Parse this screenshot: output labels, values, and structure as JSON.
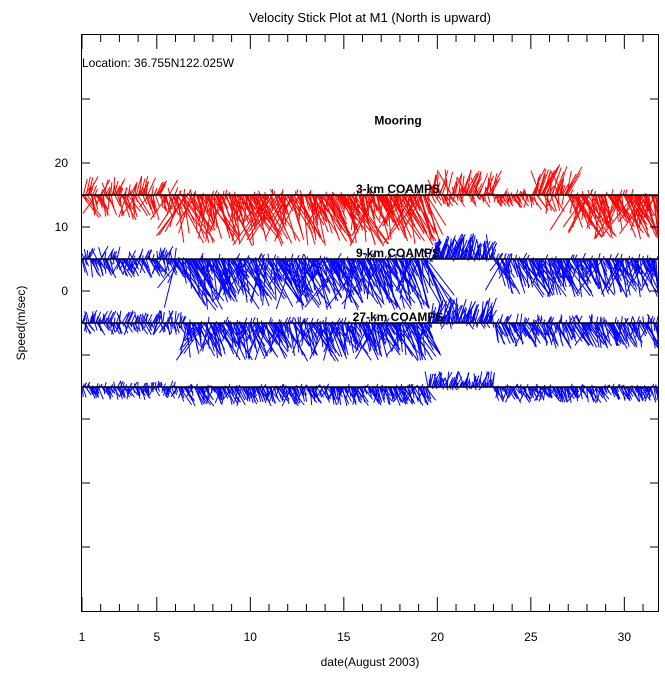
{
  "chart_data": {
    "type": "stick",
    "title": "Velocity Stick Plot at M1 (North is upward)",
    "xlabel": "date(August 2003)",
    "ylabel": "Speed(m/sec)",
    "annotation": "Location: 36.755N122.025W",
    "x_ticks": [
      1,
      5,
      10,
      15,
      20,
      25,
      30
    ],
    "x_minor_ticks": [
      2,
      3,
      4,
      6,
      7,
      8,
      9,
      11,
      12,
      13,
      14,
      16,
      17,
      18,
      19,
      21,
      22,
      23,
      24,
      26,
      27,
      28,
      29,
      31
    ],
    "xlim": [
      1,
      31.8
    ],
    "y_ticks": [
      20,
      10,
      0
    ],
    "y_tick_positions": [
      20,
      10,
      0
    ],
    "ylim": [
      -50,
      40
    ],
    "series": [
      {
        "name": "Mooring",
        "baseline": 15,
        "color": "#ff0000",
        "segments": [
          {
            "from": 1,
            "to": 6,
            "max_down": 4,
            "max_up": 3
          },
          {
            "from": 6,
            "to": 19.5,
            "max_down": 8,
            "max_up": 1
          },
          {
            "from": 19.5,
            "to": 23,
            "max_down": 2,
            "max_up": 4
          },
          {
            "from": 23,
            "to": 25,
            "max_down": 2,
            "max_up": 1
          },
          {
            "from": 25,
            "to": 27,
            "max_down": 3,
            "max_up": 5
          },
          {
            "from": 27,
            "to": 31.8,
            "max_down": 7,
            "max_up": 1
          }
        ]
      },
      {
        "name": "3-km COAMPS",
        "baseline": 5,
        "color": "#0000ff",
        "segments": [
          {
            "from": 1,
            "to": 6,
            "max_down": 3,
            "max_up": 2
          },
          {
            "from": 6,
            "to": 19.5,
            "max_down": 8,
            "max_up": 1
          },
          {
            "from": 19.5,
            "to": 23,
            "max_down": 0.5,
            "max_up": 4
          },
          {
            "from": 23,
            "to": 31.8,
            "max_down": 6,
            "max_up": 1
          }
        ]
      },
      {
        "name": "9-km COAMPS",
        "baseline": -5,
        "color": "#0000ff",
        "segments": [
          {
            "from": 1,
            "to": 6.5,
            "max_down": 2,
            "max_up": 2
          },
          {
            "from": 6.5,
            "to": 19.5,
            "max_down": 6,
            "max_up": 1
          },
          {
            "from": 19.5,
            "to": 23,
            "max_down": 1,
            "max_up": 4
          },
          {
            "from": 23,
            "to": 31.8,
            "max_down": 4,
            "max_up": 1.5
          }
        ]
      },
      {
        "name": "27-km COAMPS",
        "baseline": -15,
        "color": "#0000ff",
        "segments": [
          {
            "from": 1,
            "to": 6,
            "max_down": 2,
            "max_up": 1
          },
          {
            "from": 6,
            "to": 19.5,
            "max_down": 3,
            "max_up": 0.5
          },
          {
            "from": 19.5,
            "to": 23,
            "max_down": 0.5,
            "max_up": 2.5
          },
          {
            "from": 23,
            "to": 31.8,
            "max_down": 2.5,
            "max_up": 0.5
          }
        ]
      }
    ]
  }
}
